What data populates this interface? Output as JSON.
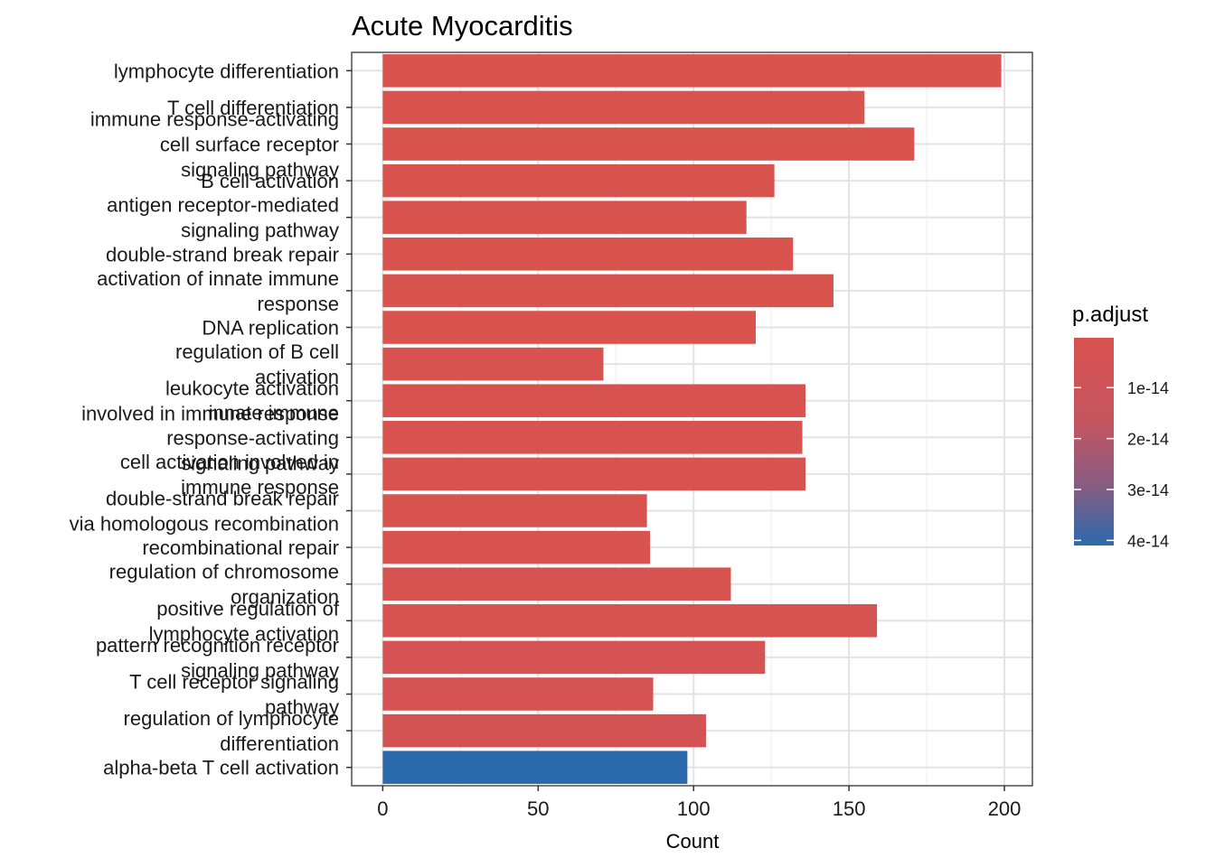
{
  "chart_data": {
    "type": "bar",
    "orientation": "horizontal",
    "title": "Acute Myocarditis",
    "xlabel": "Count",
    "ylabel": "",
    "xlim": [
      -10,
      209
    ],
    "xticks": [
      0,
      50,
      100,
      150,
      200
    ],
    "grid": true,
    "legend": {
      "title": "p.adjust",
      "position": "right",
      "ticks": [
        1e-14,
        2e-14,
        3e-14,
        4e-14
      ],
      "tick_labels": [
        "1e-14",
        "2e-14",
        "3e-14",
        "4e-14"
      ],
      "range": [
        2e-16,
        4.1e-14
      ],
      "low_color": "#d9534f",
      "high_color": "#2b6aad"
    },
    "categories": [
      "lymphocyte differentiation",
      "T cell differentiation",
      "immune response-activating\ncell surface receptor\nsignaling pathway",
      "B cell activation",
      "antigen receptor-mediated\nsignaling pathway",
      "double-strand break repair",
      "activation of innate immune\nresponse",
      "DNA replication",
      "regulation of B cell\nactivation",
      "leukocyte activation\ninvolved in immune response",
      "innate immune\nresponse-activating\nsignaling pathway",
      "cell activation involved in\nimmune response",
      "double-strand break repair\nvia homologous recombination",
      "recombinational repair",
      "regulation of chromosome\norganization",
      "positive regulation of\nlymphocyte activation",
      "pattern recognition receptor\nsignaling pathway",
      "T cell receptor signaling\npathway",
      "regulation of lymphocyte\ndifferentiation",
      "alpha-beta T cell activation"
    ],
    "values": [
      199,
      155,
      171,
      126,
      117,
      132,
      145,
      120,
      71,
      136,
      135,
      136,
      85,
      86,
      112,
      159,
      123,
      87,
      104,
      98
    ],
    "p_adjust": [
      2e-16,
      2e-16,
      2e-16,
      3e-16,
      3e-16,
      4e-16,
      5e-16,
      6e-16,
      7e-16,
      8e-16,
      9e-16,
      1e-15,
      1.2e-15,
      1.4e-15,
      1.7e-15,
      2.5e-15,
      3.2e-15,
      3.8e-15,
      5.5e-15,
      4.1e-14
    ]
  }
}
